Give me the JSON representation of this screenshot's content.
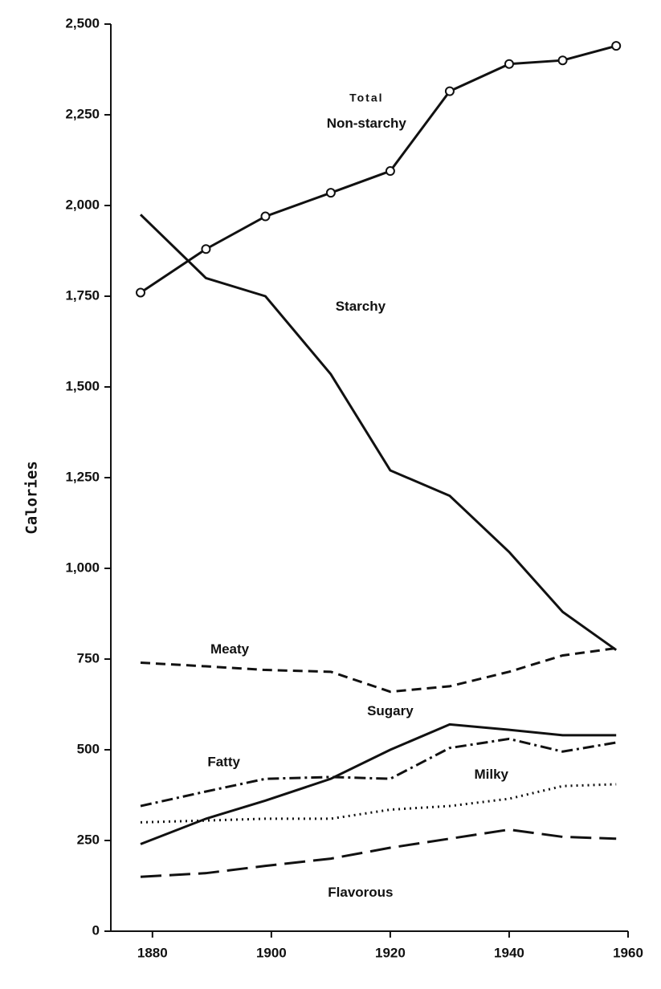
{
  "chart_data": {
    "type": "line",
    "y_label": "Calories",
    "x": [
      1878,
      1889,
      1899,
      1910,
      1920,
      1930,
      1940,
      1949,
      1958
    ],
    "xlim": [
      1873,
      1960
    ],
    "xticks": [
      1880,
      1900,
      1920,
      1940,
      1960
    ],
    "ylim": [
      0,
      2500
    ],
    "yticks": [
      0,
      {
        "value": 250,
        "label": "250"
      },
      {
        "value": 500,
        "label": "500"
      },
      {
        "value": 750,
        "label": "750"
      },
      {
        "value": 1000,
        "label": "1,000"
      },
      {
        "value": 1250,
        "label": "1,250"
      },
      {
        "value": 1500,
        "label": "1,500"
      },
      {
        "value": 1750,
        "label": "1,750"
      },
      {
        "value": 2000,
        "label": "2,000"
      },
      {
        "value": 2250,
        "label": "2,250"
      },
      {
        "value": 2500,
        "label": "2,500"
      }
    ],
    "annotations": [
      "Total"
    ],
    "series": [
      {
        "name": "Non-starchy",
        "color": "#111111",
        "style": "solid",
        "marker": "open-circle",
        "values": [
          1760,
          1880,
          1970,
          2035,
          2095,
          2315,
          2390,
          2400,
          2440
        ]
      },
      {
        "name": "Starchy",
        "color": "#111111",
        "style": "solid",
        "values": [
          1975,
          1800,
          1750,
          1535,
          1270,
          1200,
          1045,
          880,
          775
        ]
      },
      {
        "name": "Meaty",
        "color": "#111111",
        "style": "dashed",
        "values": [
          740,
          730,
          720,
          715,
          660,
          675,
          715,
          760,
          780
        ]
      },
      {
        "name": "Sugary",
        "color": "#111111",
        "style": "thin",
        "values": [
          240,
          310,
          360,
          420,
          500,
          570,
          555,
          540,
          540
        ]
      },
      {
        "name": "Fatty",
        "color": "#111111",
        "style": "dashdot",
        "values": [
          345,
          385,
          420,
          425,
          420,
          505,
          530,
          495,
          520
        ]
      },
      {
        "name": "Milky",
        "color": "#111111",
        "style": "dotted",
        "values": [
          300,
          305,
          310,
          310,
          335,
          345,
          365,
          400,
          405
        ]
      },
      {
        "name": "Flavorous",
        "color": "#111111",
        "style": "longdash",
        "values": [
          150,
          160,
          180,
          200,
          230,
          255,
          280,
          260,
          255
        ]
      }
    ]
  }
}
